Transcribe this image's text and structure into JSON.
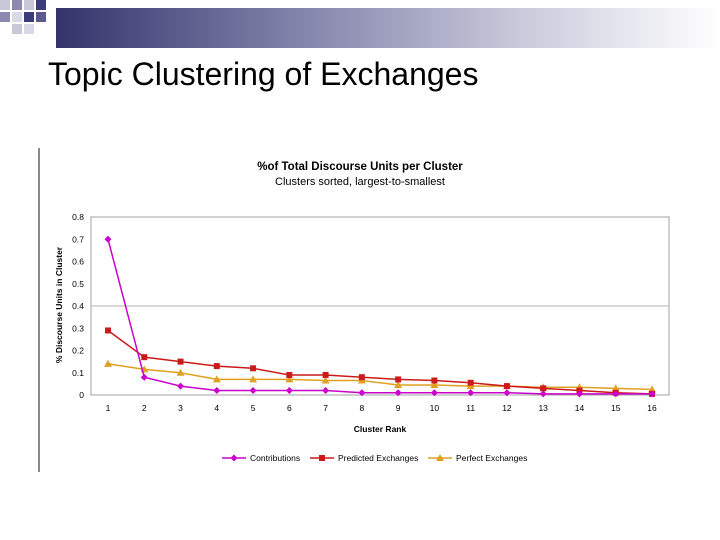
{
  "slide": {
    "title": "Topic Clustering of Exchanges"
  },
  "chart_data": {
    "type": "line",
    "title": "%of Total Discourse Units per Cluster",
    "subtitle": "Clusters sorted, largest-to-smallest",
    "xlabel": "Cluster Rank",
    "ylabel": "% Discourse Units in Cluster",
    "x": [
      1,
      2,
      3,
      4,
      5,
      6,
      7,
      8,
      9,
      10,
      11,
      12,
      13,
      14,
      15,
      16
    ],
    "ylim": [
      0,
      0.8
    ],
    "yticks": [
      "0",
      "0.1",
      "0.2",
      "0.3",
      "0.4",
      "0.5",
      "0.6",
      "0.7",
      "0.8"
    ],
    "grid": "major y at 0.4",
    "legend": "bottom",
    "series": [
      {
        "name": "Contributions",
        "color": "#cc00cc",
        "marker": "diamond",
        "values": [
          0.7,
          0.08,
          0.04,
          0.02,
          0.02,
          0.02,
          0.02,
          0.01,
          0.01,
          0.01,
          0.01,
          0.01,
          0.005,
          0.005,
          0.005,
          0.005
        ]
      },
      {
        "name": "Predicted Exchanges",
        "color": "#cc1a1a",
        "marker": "square",
        "values": [
          0.29,
          0.17,
          0.15,
          0.13,
          0.12,
          0.09,
          0.09,
          0.08,
          0.07,
          0.065,
          0.055,
          0.04,
          0.03,
          0.02,
          0.01,
          0.005
        ]
      },
      {
        "name": "Perfect Exchanges",
        "color": "#e0a020",
        "marker": "triangle",
        "values": [
          0.14,
          0.115,
          0.1,
          0.07,
          0.07,
          0.07,
          0.065,
          0.065,
          0.045,
          0.045,
          0.04,
          0.04,
          0.035,
          0.035,
          0.03,
          0.025
        ]
      }
    ]
  }
}
